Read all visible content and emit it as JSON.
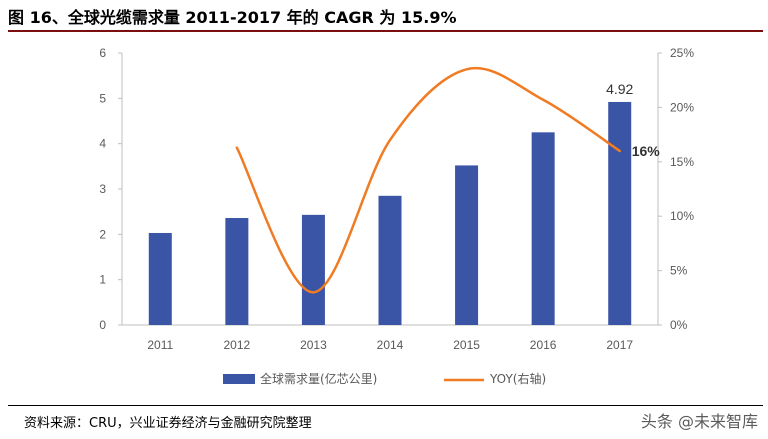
{
  "figure": {
    "title": "图 16、全球光缆需求量 2011-2017 年的 CAGR 为 15.9%",
    "source": "资料来源：CRU，兴业证券经济与金融研究院整理",
    "watermark": "头条 @未来智库"
  },
  "colors": {
    "bar": "#3a55a5",
    "line": "#f07b22",
    "axis": "#bfbfbf",
    "title_rule": "#7b0f0f"
  },
  "chart_data": {
    "type": "bar",
    "categories": [
      "2011",
      "2012",
      "2013",
      "2014",
      "2015",
      "2016",
      "2017"
    ],
    "series": [
      {
        "name": "全球需求量(亿芯公里)",
        "type": "bar",
        "axis": "left",
        "values": [
          2.03,
          2.36,
          2.43,
          2.85,
          3.52,
          4.25,
          4.92
        ]
      },
      {
        "name": "YOY(右轴)",
        "type": "line",
        "axis": "right",
        "smooth": true,
        "values": [
          null,
          0.163,
          0.03,
          0.17,
          0.235,
          0.207,
          0.16
        ]
      }
    ],
    "ylim": [
      0,
      6
    ],
    "y_ticks": [
      "0",
      "1",
      "2",
      "3",
      "4",
      "5",
      "6"
    ],
    "y2lim": [
      0,
      0.25
    ],
    "y2_ticks": [
      "0%",
      "5%",
      "10%",
      "15%",
      "20%",
      "25%"
    ],
    "data_labels": [
      {
        "series": 0,
        "index": 6,
        "text": "4.92"
      },
      {
        "series": 1,
        "index": 6,
        "text": "16%"
      }
    ],
    "legend_position": "bottom",
    "grid": false
  }
}
